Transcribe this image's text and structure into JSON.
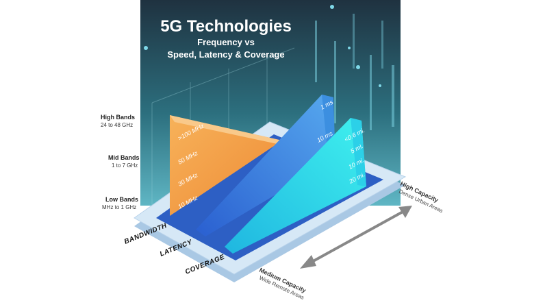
{
  "title": "5G Technologies",
  "subtitle": [
    "Frequency vs",
    "Speed, Latency & Coverage"
  ],
  "bands": [
    {
      "name": "High Bands",
      "range": "24 to 48 GHz"
    },
    {
      "name": "Mid Bands",
      "range": "1 to 7 GHz"
    },
    {
      "name": "Low Bands",
      "range": "MHz to 1 GHz"
    }
  ],
  "bandwidth": {
    "label": "BANDWIDTH",
    "ticks": [
      ">100 MHz",
      "50 MHz",
      "30 MHz",
      "10 MHz"
    ]
  },
  "latency": {
    "label": "LATENCY",
    "ticks": [
      "1 ms",
      "10 ms"
    ]
  },
  "coverage": {
    "label": "COVERAGE",
    "ticks": [
      "<0.6 mi.",
      "5 mi.",
      "10 mi.",
      "20 mi."
    ]
  },
  "high_capacity": {
    "title": "High Capacity",
    "subtitle": "Dense Urban Areas"
  },
  "medium_capacity": {
    "title": "Medium Capacity",
    "subtitle": "Wide Remote Areas"
  }
}
